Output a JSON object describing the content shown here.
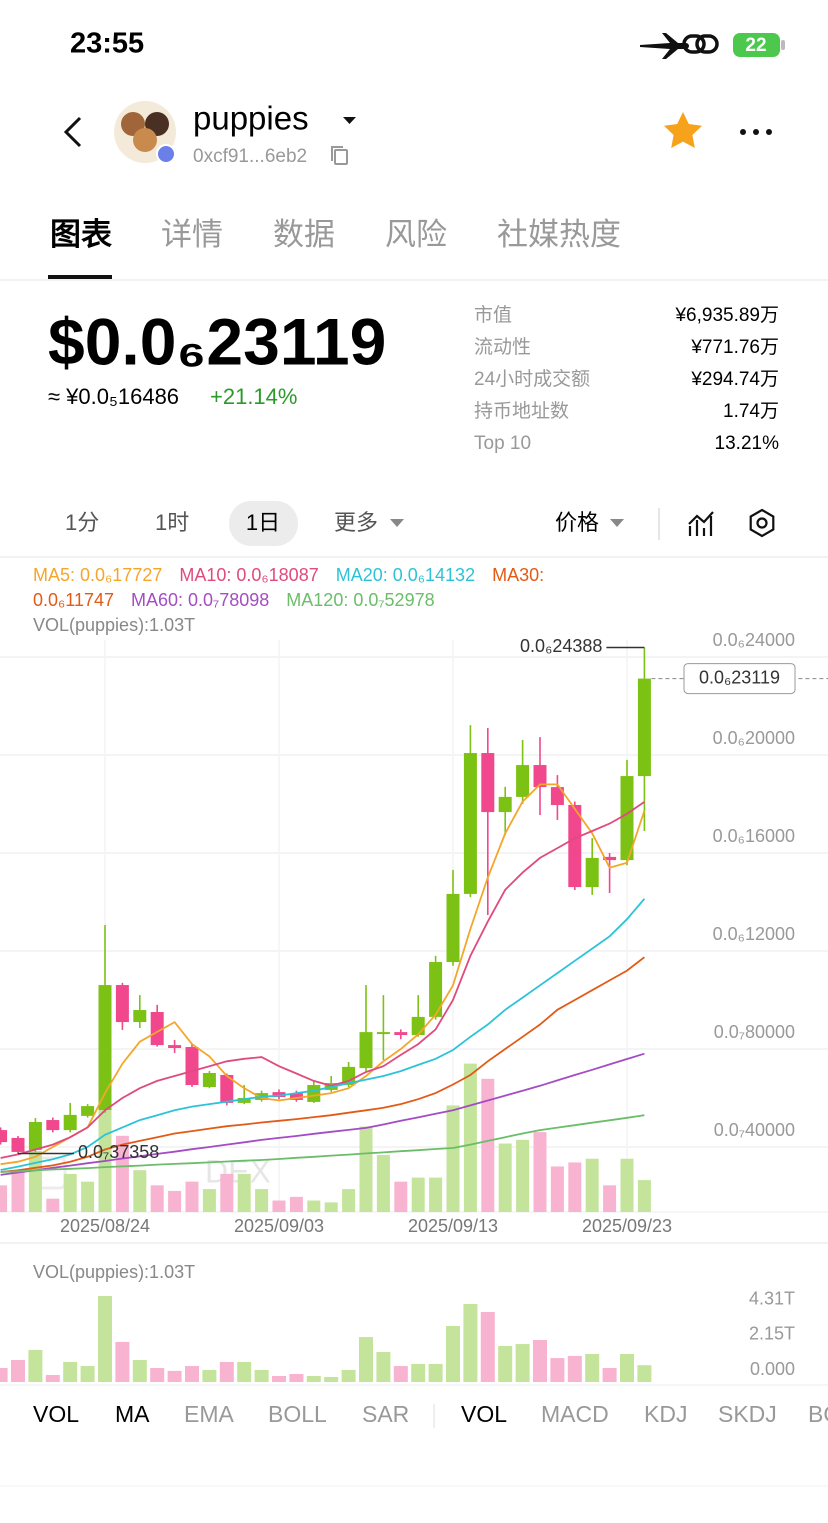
{
  "status_bar": {
    "time": "23:55",
    "battery": "22"
  },
  "header": {
    "token": "puppies",
    "address": "0xcf91...6eb2"
  },
  "tabs": [
    "图表",
    "详情",
    "数据",
    "风险",
    "社媒热度"
  ],
  "price": {
    "usd": "$0.0₆23119",
    "cny": "≈ ¥0.0₅16486",
    "change": "+21.14%"
  },
  "stats": [
    {
      "label": "市值",
      "value": "¥6,935.89万"
    },
    {
      "label": "流动性",
      "value": "¥771.76万"
    },
    {
      "label": "24小时成交额",
      "value": "¥294.74万"
    },
    {
      "label": "持币地址数",
      "value": "1.74万"
    },
    {
      "label": "Top 10",
      "value": "13.21%"
    }
  ],
  "intervals": [
    "1分",
    "1时",
    "1日",
    "更多"
  ],
  "price_selector": "价格",
  "watermark": "DEX",
  "indicator_tabs": [
    "VOL",
    "MA",
    "EMA",
    "BOLL",
    "SAR"
  ],
  "sub_indicator_tabs": [
    "VOL",
    "MACD",
    "KDJ",
    "SKDJ",
    "BOLL"
  ],
  "chart_data": [
    {
      "type": "candlestick",
      "x": [
        null,
        null,
        null,
        null,
        null,
        null,
        "2025/08/24",
        null,
        null,
        null,
        null,
        null,
        null,
        null,
        null,
        null,
        "2025/09/03",
        null,
        null,
        null,
        null,
        null,
        null,
        null,
        null,
        null,
        "2025/09/13",
        null,
        null,
        null,
        null,
        null,
        null,
        null,
        null,
        null,
        "2025/09/23",
        null
      ],
      "open": [
        4.69e-08,
        4.37e-08,
        3.88e-08,
        5.1e-08,
        4.69e-08,
        5.27e-08,
        5.51e-08,
        1.061e-07,
        9.1e-08,
        9.51e-08,
        8.16e-08,
        8.08e-08,
        6.45e-08,
        6.94e-08,
        5.8e-08,
        5.92e-08,
        6.24e-08,
        6.2e-08,
        5.84e-08,
        6.33e-08,
        6.53e-08,
        7.22e-08,
        8.61e-08,
        8.69e-08,
        8.57e-08,
        9.31e-08,
        1.155e-07,
        1.433e-07,
        2.008e-07,
        1.767e-07,
        1.829e-07,
        1.959e-07,
        1.869e-07,
        1.796e-07,
        1.461e-07,
        1.584e-07,
        1.571e-07,
        1.914e-07
      ],
      "close": [
        4.2e-08,
        3.8e-08,
        5.02e-08,
        4.69e-08,
        5.31e-08,
        5.67e-08,
        1.061e-07,
        9.1e-08,
        9.59e-08,
        8.16e-08,
        8.04e-08,
        6.53e-08,
        7.02e-08,
        5.8e-08,
        6e-08,
        6.2e-08,
        6.04e-08,
        5.92e-08,
        6.53e-08,
        6.61e-08,
        7.27e-08,
        8.69e-08,
        8.69e-08,
        8.57e-08,
        9.31e-08,
        1.155e-07,
        1.433e-07,
        2.008e-07,
        1.767e-07,
        1.829e-07,
        1.959e-07,
        1.869e-07,
        1.796e-07,
        1.461e-07,
        1.58e-07,
        1.571e-07,
        1.914e-07,
        2.3119e-07
      ],
      "high": [
        4.8e-08,
        4.45e-08,
        5.18e-08,
        5.2e-08,
        5.8e-08,
        5.75e-08,
        1.306e-07,
        1.07e-07,
        1.02e-07,
        9.8e-08,
        8.37e-08,
        8.2e-08,
        7.1e-08,
        7e-08,
        6.53e-08,
        6.3e-08,
        6.35e-08,
        6.3e-08,
        6.7e-08,
        6.9e-08,
        7.47e-08,
        1.061e-07,
        1.02e-07,
        8.8e-08,
        1.02e-07,
        1.18e-07,
        1.531e-07,
        2.122e-07,
        2.11e-07,
        1.87e-07,
        2.061e-07,
        2.073e-07,
        1.918e-07,
        1.81e-07,
        1.661e-07,
        1.6e-07,
        1.98e-07,
        2.4388e-07
      ],
      "low": [
        4.1e-08,
        3.7358e-08,
        3.8e-08,
        4.6e-08,
        4.6e-08,
        5.2e-08,
        5.4e-08,
        8.78e-08,
        8.86e-08,
        8.1e-08,
        7.84e-08,
        6.45e-08,
        6.4e-08,
        5.7e-08,
        5.75e-08,
        5.85e-08,
        5.95e-08,
        5.85e-08,
        5.8e-08,
        6.25e-08,
        6.45e-08,
        7.1e-08,
        7.55e-08,
        8.4e-08,
        8.5e-08,
        9.2e-08,
        1.14e-07,
        1.42e-07,
        1.347e-07,
        1.673e-07,
        1.8e-07,
        1.755e-07,
        1.735e-07,
        1.449e-07,
        1.429e-07,
        1.437e-07,
        1.55e-07,
        1.69e-07
      ],
      "up_color": "#7cc214",
      "down_color": "#f0478d",
      "ylim": [
        1.347e-08,
        2.4694e-07
      ],
      "yticks": [
        {
          "value": 4e-08,
          "label": "0.0₇40000"
        },
        {
          "value": 8e-08,
          "label": "0.0₇80000"
        },
        {
          "value": 1.2e-07,
          "label": "0.0₆12000"
        },
        {
          "value": 1.6e-07,
          "label": "0.0₆16000"
        },
        {
          "value": 2e-07,
          "label": "0.0₆20000"
        },
        {
          "value": 2.4e-07,
          "label": "0.0₆24000"
        }
      ],
      "grid": true,
      "series": [
        {
          "name": "MA5",
          "legend": "MA5: 0.0₆17727",
          "color": "#f4a62a",
          "values": [
            3.3e-08,
            3.4e-08,
            3.6e-08,
            4e-08,
            4.4e-08,
            4.8e-08,
            6.2e-08,
            7.4e-08,
            8.3e-08,
            8.7e-08,
            9.1e-08,
            8.2e-08,
            7.7e-08,
            6.9e-08,
            6.4e-08,
            6e-08,
            5.9e-08,
            6e-08,
            6.1e-08,
            6.2e-08,
            6.4e-08,
            6.9e-08,
            7.5e-08,
            8e-08,
            8.6e-08,
            9.4e-08,
            1.06e-07,
            1.29e-07,
            1.5e-07,
            1.68e-07,
            1.81e-07,
            1.88e-07,
            1.88e-07,
            1.78e-07,
            1.68e-07,
            1.54e-07,
            1.56e-07,
            1.7727e-07
          ]
        },
        {
          "name": "MA10",
          "legend": "MA10: 0.0₆18087",
          "color": "#e04a7f",
          "values": [
            3.55e-08,
            3.7e-08,
            3.9e-08,
            4.1e-08,
            4.4e-08,
            4.8e-08,
            5.5e-08,
            6e-08,
            6.4e-08,
            6.7e-08,
            6.9e-08,
            7.1e-08,
            7.3e-08,
            7.5e-08,
            7.6e-08,
            7.67e-08,
            7.3e-08,
            7e-08,
            6.7e-08,
            6.5e-08,
            6.7e-08,
            7.06e-08,
            7.3e-08,
            7.76e-08,
            8.2e-08,
            8.8e-08,
            1e-07,
            1.18e-07,
            1.32e-07,
            1.45e-07,
            1.52e-07,
            1.58e-07,
            1.62e-07,
            1.66e-07,
            1.69e-07,
            1.72e-07,
            1.76e-07,
            1.8087e-07
          ]
        },
        {
          "name": "MA20",
          "legend": "MA20: 0.0₆14132",
          "color": "#2cc3d8",
          "values": [
            3.06e-08,
            3.2e-08,
            3.35e-08,
            3.5e-08,
            3.7e-08,
            4e-08,
            4.5e-08,
            4.8e-08,
            5.1e-08,
            5.3e-08,
            5.5e-08,
            5.65e-08,
            5.75e-08,
            5.85e-08,
            5.95e-08,
            6.05e-08,
            6.1e-08,
            6.2e-08,
            6.3e-08,
            6.45e-08,
            6.6e-08,
            6.75e-08,
            6.9e-08,
            7.1e-08,
            7.35e-08,
            7.6e-08,
            7.96e-08,
            8.5e-08,
            9e-08,
            9.6e-08,
            1.01e-07,
            1.06e-07,
            1.11e-07,
            1.16e-07,
            1.21e-07,
            1.26e-07,
            1.33e-07,
            1.4132e-07
          ]
        },
        {
          "name": "MA30",
          "legend": "MA30: 0.0₆11747",
          "color": "#e35a16",
          "values": [
            2.98e-08,
            3.05e-08,
            3.15e-08,
            3.25e-08,
            3.4e-08,
            3.6e-08,
            3.9e-08,
            4.1e-08,
            4.25e-08,
            4.4e-08,
            4.55e-08,
            4.65e-08,
            4.75e-08,
            4.85e-08,
            4.92e-08,
            5e-08,
            5.07e-08,
            5.14e-08,
            5.22e-08,
            5.3e-08,
            5.4e-08,
            5.5e-08,
            5.6e-08,
            5.75e-08,
            5.95e-08,
            6.2e-08,
            6.55e-08,
            6.94e-08,
            7.5e-08,
            8e-08,
            8.5e-08,
            9e-08,
            9.6e-08,
            1e-07,
            1.04e-07,
            1.08e-07,
            1.12e-07,
            1.1747e-07
          ]
        },
        {
          "name": "MA60",
          "legend": "MA60: 0.0₇78098",
          "color": "#a44cc4",
          "values": [
            2.86e-08,
            2.96e-08,
            3.05e-08,
            3.15e-08,
            3.24e-08,
            3.34e-08,
            3.43e-08,
            3.53e-08,
            3.62e-08,
            3.72e-08,
            3.81e-08,
            3.91e-08,
            4e-08,
            4.1e-08,
            4.19e-08,
            4.29e-08,
            4.37e-08,
            4.45e-08,
            4.54e-08,
            4.62e-08,
            4.7e-08,
            4.78e-08,
            4.92e-08,
            5.07e-08,
            5.21e-08,
            5.36e-08,
            5.5e-08,
            5.7e-08,
            5.9e-08,
            6.1e-08,
            6.3e-08,
            6.5e-08,
            6.72e-08,
            6.94e-08,
            7.15e-08,
            7.37e-08,
            7.59e-08,
            7.8098e-08
          ]
        },
        {
          "name": "MA120",
          "legend": "MA120: 0.0₇52978",
          "color": "#6cbd6a",
          "values": [
            2.98e-08,
            3.01e-08,
            3.05e-08,
            3.08e-08,
            3.11e-08,
            3.14e-08,
            3.18e-08,
            3.21e-08,
            3.24e-08,
            3.28e-08,
            3.31e-08,
            3.34e-08,
            3.37e-08,
            3.41e-08,
            3.44e-08,
            3.47e-08,
            3.51e-08,
            3.56e-08,
            3.6e-08,
            3.65e-08,
            3.69e-08,
            3.74e-08,
            3.78e-08,
            3.83e-08,
            3.87e-08,
            3.92e-08,
            3.96e-08,
            4.1e-08,
            4.25e-08,
            4.4e-08,
            4.55e-08,
            4.69e-08,
            4.79e-08,
            4.89e-08,
            4.99e-08,
            5.09e-08,
            5.19e-08,
            5.2978e-08
          ]
        }
      ],
      "annotations": {
        "high": {
          "value": 2.4388e-07,
          "label": "0.0₆24388"
        },
        "low": {
          "value": 3.7358e-08,
          "label": "0.0₇37358"
        },
        "last": {
          "value": 2.3119e-07,
          "label": "0.0₆23119"
        }
      }
    },
    {
      "type": "bar",
      "title": "VOL(puppies):1.03T",
      "values": [
        860000000000.0,
        1350000000000.0,
        1970000000000.0,
        430000000000.0,
        1230000000000.0,
        980000000000.0,
        5280000000000.0,
        2460000000000.0,
        1350000000000.0,
        860000000000.0,
        680000000000.0,
        980000000000.0,
        740000000000.0,
        1230000000000.0,
        1230000000000.0,
        740000000000.0,
        370000000000.0,
        490000000000.0,
        370000000000.0,
        310000000000.0,
        740000000000.0,
        2760000000000.0,
        1840000000000.0,
        980000000000.0,
        1110000000000.0,
        1110000000000.0,
        3440000000000.0,
        4790000000000.0,
        4300000000000.0,
        2210000000000.0,
        2330000000000.0,
        2580000000000.0,
        1470000000000.0,
        1600000000000.0,
        1720000000000.0,
        860000000000.0,
        1720000000000.0,
        1030000000000.0
      ],
      "up_color": "#c4e39b",
      "down_color": "#f8b3d0",
      "ylim": [
        0,
        5650000000000.0
      ],
      "yticks": [
        {
          "value": 0,
          "label": "0.000"
        },
        {
          "value": 2150000000000.0,
          "label": "2.15T"
        },
        {
          "value": 4310000000000.0,
          "label": "4.31T"
        }
      ]
    }
  ]
}
